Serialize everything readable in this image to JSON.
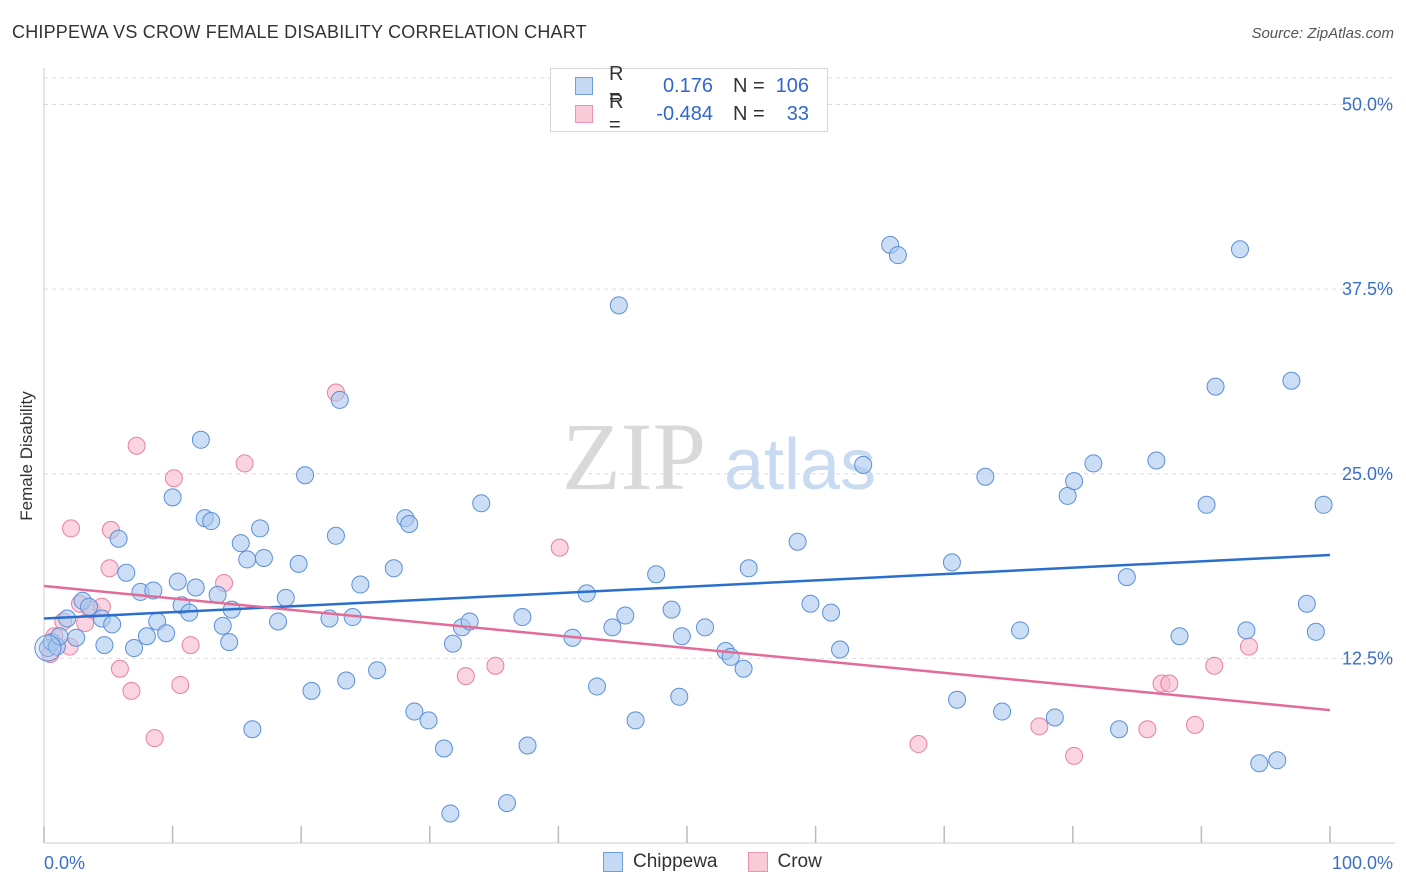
{
  "title": "CHIPPEWA VS CROW FEMALE DISABILITY CORRELATION CHART",
  "source": "Source: ZipAtlas.com",
  "watermark": {
    "zip": "ZIP",
    "atlas": "atlas"
  },
  "legend": {
    "rows": [
      {
        "r_label": "R =",
        "r_value": "0.176",
        "n_label": "N =",
        "n_value": "106"
      },
      {
        "r_label": "R =",
        "r_value": "-0.484",
        "n_label": "N =",
        "n_value": "33"
      }
    ]
  },
  "colors": {
    "chippewa_fill": "#a9c8ee",
    "chippewa_stroke": "#5b8fd8",
    "chippewa_line": "#2a6fcc",
    "crow_fill": "#f7b7cb",
    "crow_stroke": "#e880a3",
    "crow_line": "#e26b98",
    "tick_label": "#3a6fc8",
    "grid": "#dddddd"
  },
  "chart_data": {
    "type": "scatter",
    "title": "CHIPPEWA VS CROW FEMALE DISABILITY CORRELATION CHART",
    "xlabel": "",
    "ylabel": "Female Disability",
    "xlim": [
      0,
      100
    ],
    "ylim": [
      0,
      52
    ],
    "x_tick_labels": [
      "0.0%",
      "100.0%"
    ],
    "y_ticks": [
      12.5,
      25.0,
      37.5,
      50.0
    ],
    "y_tick_labels": [
      "12.5%",
      "25.0%",
      "37.5%",
      "50.0%"
    ],
    "grid": true,
    "legend_position": "top-center",
    "series": [
      {
        "name": "Chippewa",
        "r": 0.176,
        "n": 106,
        "trend": {
          "x": [
            0,
            100
          ],
          "y": [
            15.2,
            19.5
          ]
        },
        "points": [
          [
            0.3,
            13.2
          ],
          [
            0.6,
            13.6
          ],
          [
            1.0,
            13.3
          ],
          [
            1.2,
            14.0
          ],
          [
            1.8,
            15.2
          ],
          [
            2.5,
            13.9
          ],
          [
            3.0,
            16.4
          ],
          [
            3.5,
            16.0
          ],
          [
            4.5,
            15.2
          ],
          [
            4.7,
            13.4
          ],
          [
            5.3,
            14.8
          ],
          [
            5.8,
            20.6
          ],
          [
            6.4,
            18.3
          ],
          [
            7.0,
            13.2
          ],
          [
            7.5,
            17.0
          ],
          [
            8.0,
            14.0
          ],
          [
            8.5,
            17.1
          ],
          [
            8.8,
            15.0
          ],
          [
            9.5,
            14.2
          ],
          [
            10.0,
            23.4
          ],
          [
            10.4,
            17.7
          ],
          [
            10.7,
            16.1
          ],
          [
            11.3,
            15.6
          ],
          [
            11.8,
            17.3
          ],
          [
            12.2,
            27.3
          ],
          [
            12.5,
            22.0
          ],
          [
            13.0,
            21.8
          ],
          [
            13.5,
            16.8
          ],
          [
            13.9,
            14.7
          ],
          [
            14.4,
            13.6
          ],
          [
            14.6,
            15.8
          ],
          [
            15.3,
            20.3
          ],
          [
            15.8,
            19.2
          ],
          [
            16.2,
            7.7
          ],
          [
            16.8,
            21.3
          ],
          [
            17.1,
            19.3
          ],
          [
            18.2,
            15.0
          ],
          [
            18.8,
            16.6
          ],
          [
            19.8,
            18.9
          ],
          [
            20.3,
            24.9
          ],
          [
            20.8,
            10.3
          ],
          [
            22.2,
            15.2
          ],
          [
            22.7,
            20.8
          ],
          [
            23.0,
            30.0
          ],
          [
            23.5,
            11.0
          ],
          [
            24.0,
            15.3
          ],
          [
            24.6,
            17.5
          ],
          [
            25.9,
            11.7
          ],
          [
            27.2,
            18.6
          ],
          [
            28.1,
            22.0
          ],
          [
            28.4,
            21.6
          ],
          [
            28.8,
            8.9
          ],
          [
            29.9,
            8.3
          ],
          [
            31.1,
            6.4
          ],
          [
            31.6,
            2.0
          ],
          [
            31.8,
            13.5
          ],
          [
            32.5,
            14.6
          ],
          [
            33.1,
            15.0
          ],
          [
            34.0,
            23.0
          ],
          [
            36.0,
            2.7
          ],
          [
            37.2,
            15.3
          ],
          [
            37.6,
            6.6
          ],
          [
            41.1,
            13.9
          ],
          [
            42.2,
            16.9
          ],
          [
            43.0,
            10.6
          ],
          [
            44.2,
            14.6
          ],
          [
            44.7,
            36.4
          ],
          [
            45.2,
            15.4
          ],
          [
            46.0,
            8.3
          ],
          [
            47.6,
            18.2
          ],
          [
            48.8,
            15.8
          ],
          [
            49.4,
            9.9
          ],
          [
            49.6,
            14.0
          ],
          [
            51.4,
            14.6
          ],
          [
            53.0,
            13.0
          ],
          [
            53.4,
            12.6
          ],
          [
            54.4,
            11.8
          ],
          [
            54.8,
            18.6
          ],
          [
            58.6,
            20.4
          ],
          [
            59.6,
            16.2
          ],
          [
            61.2,
            15.6
          ],
          [
            61.9,
            13.1
          ],
          [
            63.7,
            25.6
          ],
          [
            65.8,
            40.5
          ],
          [
            66.4,
            39.8
          ],
          [
            70.6,
            19.0
          ],
          [
            71.0,
            9.7
          ],
          [
            73.2,
            24.8
          ],
          [
            74.5,
            8.9
          ],
          [
            75.9,
            14.4
          ],
          [
            78.6,
            8.5
          ],
          [
            79.6,
            23.5
          ],
          [
            80.1,
            24.5
          ],
          [
            81.6,
            25.7
          ],
          [
            83.6,
            7.7
          ],
          [
            84.2,
            18.0
          ],
          [
            86.5,
            25.9
          ],
          [
            88.3,
            14.0
          ],
          [
            90.4,
            22.9
          ],
          [
            91.1,
            30.9
          ],
          [
            93.0,
            40.2
          ],
          [
            93.5,
            14.4
          ],
          [
            94.5,
            5.4
          ],
          [
            95.9,
            5.6
          ],
          [
            97.0,
            31.3
          ],
          [
            98.2,
            16.2
          ],
          [
            98.9,
            14.3
          ],
          [
            99.5,
            22.9
          ]
        ]
      },
      {
        "name": "Crow",
        "r": -0.484,
        "n": 33,
        "trend": {
          "x": [
            0,
            100
          ],
          "y": [
            17.4,
            9.0
          ]
        },
        "points": [
          [
            0.5,
            12.8
          ],
          [
            0.8,
            14.0
          ],
          [
            1.5,
            15.0
          ],
          [
            2.0,
            13.3
          ],
          [
            2.1,
            21.3
          ],
          [
            2.8,
            16.2
          ],
          [
            3.2,
            14.9
          ],
          [
            3.7,
            15.8
          ],
          [
            4.5,
            16.0
          ],
          [
            5.1,
            18.6
          ],
          [
            5.2,
            21.2
          ],
          [
            5.9,
            11.8
          ],
          [
            6.8,
            10.3
          ],
          [
            7.2,
            26.9
          ],
          [
            8.6,
            7.1
          ],
          [
            10.1,
            24.7
          ],
          [
            10.6,
            10.7
          ],
          [
            11.4,
            13.4
          ],
          [
            14.0,
            17.6
          ],
          [
            15.6,
            25.7
          ],
          [
            22.7,
            30.5
          ],
          [
            32.8,
            11.3
          ],
          [
            35.1,
            12.0
          ],
          [
            40.1,
            20.0
          ],
          [
            68.0,
            6.7
          ],
          [
            77.4,
            7.9
          ],
          [
            80.1,
            5.9
          ],
          [
            85.8,
            7.7
          ],
          [
            86.9,
            10.8
          ],
          [
            87.5,
            10.8
          ],
          [
            89.5,
            8.0
          ],
          [
            91.0,
            12.0
          ],
          [
            93.7,
            13.3
          ]
        ]
      }
    ]
  }
}
